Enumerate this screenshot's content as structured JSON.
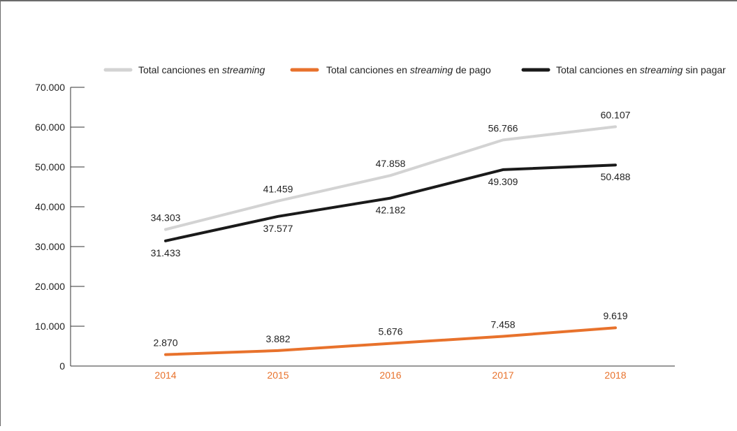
{
  "chart_data": {
    "type": "line",
    "categories": [
      "2014",
      "2015",
      "2016",
      "2017",
      "2018"
    ],
    "series": [
      {
        "name_parts": [
          "Total canciones en ",
          "streaming",
          ""
        ],
        "values": [
          34303,
          41459,
          47858,
          56766,
          60107
        ],
        "labels": [
          "34.303",
          "41.459",
          "47.858",
          "56.766",
          "60.107"
        ],
        "color": "#d3d3d3"
      },
      {
        "name_parts": [
          "Total canciones en ",
          "streaming",
          " de pago"
        ],
        "values": [
          2870,
          3882,
          5676,
          7458,
          9619
        ],
        "labels": [
          "2.870",
          "3.882",
          "5.676",
          "7.458",
          "9.619"
        ],
        "color": "#e8722c"
      },
      {
        "name_parts": [
          "Total canciones en ",
          "streaming",
          " sin pagar"
        ],
        "values": [
          31433,
          37577,
          42182,
          49309,
          50488
        ],
        "labels": [
          "31.433",
          "37.577",
          "42.182",
          "49.309",
          "50.488"
        ],
        "color": "#1a1a1a"
      }
    ],
    "yticks": [
      0,
      10000,
      20000,
      30000,
      40000,
      50000,
      60000,
      70000
    ],
    "ytick_labels": [
      "0",
      "10.000",
      "20.000",
      "30.000",
      "40.000",
      "50.000",
      "60.000",
      "70.000"
    ],
    "ylim": [
      0,
      70000
    ],
    "category_label_color": "#e8722c",
    "legend_position": "top",
    "grid": false
  }
}
